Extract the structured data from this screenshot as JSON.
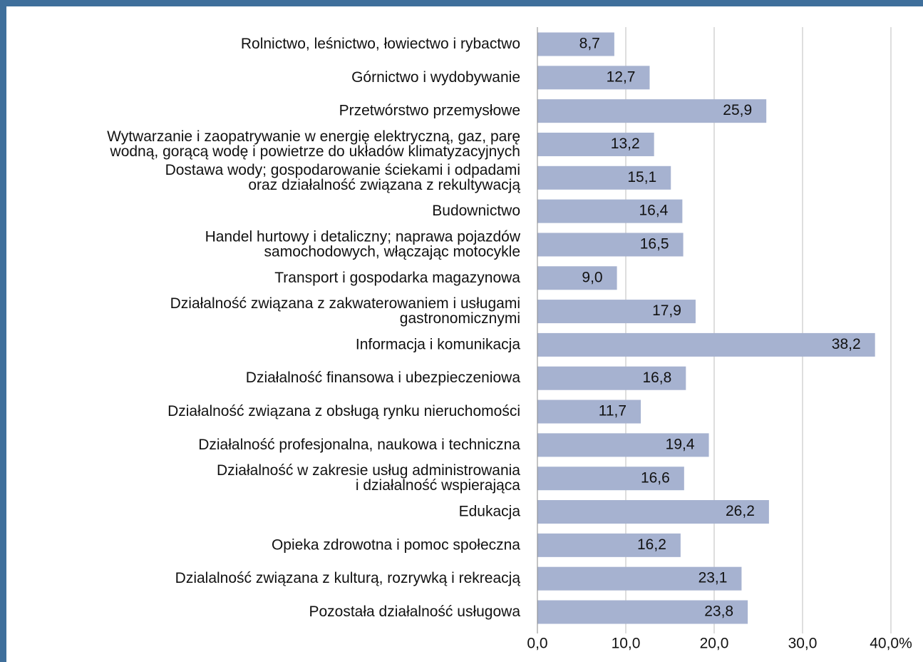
{
  "chart_data": {
    "type": "barh",
    "categories": [
      "Rolnictwo, leśnictwo, łowiectwo i rybactwo",
      "Górnictwo i wydobywanie",
      "Przetwórstwo przemysłowe",
      "Wytwarzanie i zaopatrywanie w energię elektryczną, gaz, parę\nwodną, gorącą wodę i powietrze do układów klimatyzacyjnych",
      "Dostawa wody; gospodarowanie ściekami i odpadami\noraz działalność związana z rekultywacją",
      "Budownictwo",
      "Handel hurtowy i detaliczny; naprawa pojazdów\nsamochodowych, włączając motocykle",
      "Transport i gospodarka magazynowa",
      "Działalność związana z zakwaterowaniem i usługami\ngastronomicznymi",
      "Informacja i komunikacja",
      "Działalność finansowa i ubezpieczeniowa",
      "Działalność związana z obsługą rynku nieruchomości",
      "Działalność profesjonalna, naukowa i techniczna",
      "Działalność w zakresie usług administrowania\ni działalność wspierająca",
      "Edukacja",
      "Opieka zdrowotna i pomoc społeczna",
      "Dzialalność związana z kulturą, rozrywką i rekreacją",
      "Pozostała działalność usługowa"
    ],
    "values": [
      8.7,
      12.7,
      25.9,
      13.2,
      15.1,
      16.4,
      16.5,
      9.0,
      17.9,
      38.2,
      16.8,
      11.7,
      19.4,
      16.6,
      26.2,
      16.2,
      23.1,
      23.8
    ],
    "value_labels": [
      "8,7",
      "12,7",
      "25,9",
      "13,2",
      "15,1",
      "16,4",
      "16,5",
      "9,0",
      "17,9",
      "38,2",
      "16,8",
      "11,7",
      "19,4",
      "16,6",
      "26,2",
      "16,2",
      "23,1",
      "23,8"
    ],
    "color": "#a6b2d0",
    "xlim": [
      0,
      40
    ],
    "xticks": [
      {
        "value": 0,
        "label": "0,0"
      },
      {
        "value": 10,
        "label": "10,0"
      },
      {
        "value": 20,
        "label": "20,0"
      },
      {
        "value": 30,
        "label": "30,0"
      },
      {
        "value": 40,
        "label": "40,0%"
      }
    ],
    "grid": true
  }
}
